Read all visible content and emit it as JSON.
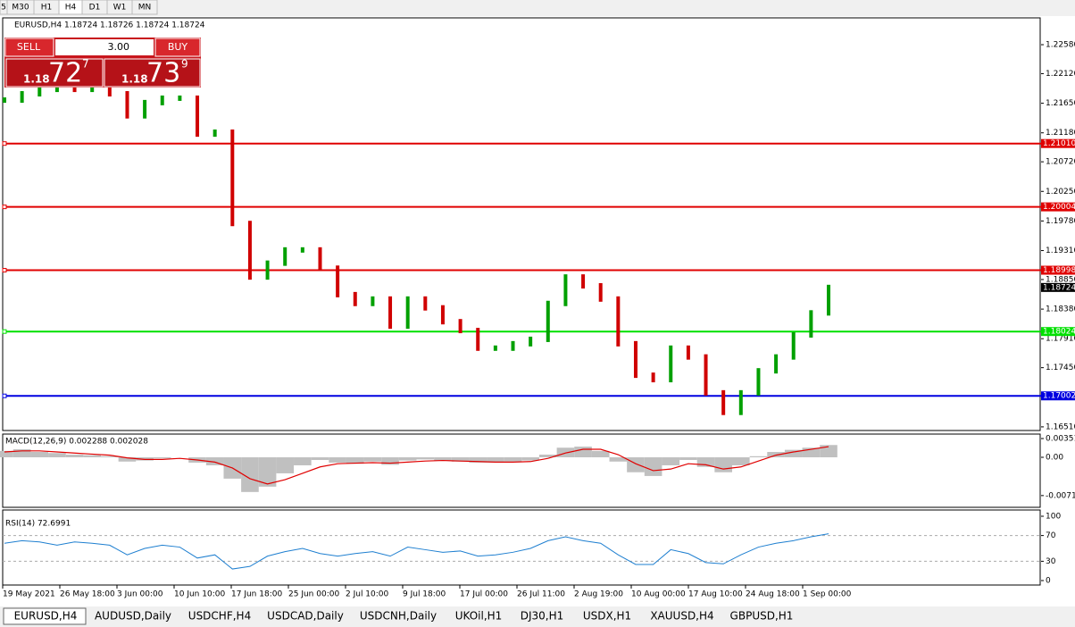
{
  "toolbar": {
    "timeframes": [
      "5",
      "M30",
      "H1",
      "H4",
      "D1",
      "W1",
      "MN"
    ]
  },
  "trade_panel": {
    "sell": "SELL",
    "lots": "3.00",
    "buy": "BUY",
    "bid_big": "1.18",
    "bid_main": "72",
    "bid_frac": "7",
    "ask_big": "1.18",
    "ask_main": "73",
    "ask_frac": "9"
  },
  "chart_data": [
    {
      "type": "candlestick",
      "title": "EURUSD,H4  1.18724 1.18726 1.18724 1.18724",
      "up_color": "#00a000",
      "down_color": "#d00000",
      "values": [
        1.217,
        1.218,
        1.2187,
        1.2194,
        1.2187,
        1.2187,
        1.218,
        1.2145,
        1.2166,
        1.2173,
        1.2173,
        1.2116,
        1.2119,
        1.1974,
        1.1889,
        1.1911,
        1.1932,
        1.1932,
        1.1903,
        1.1861,
        1.1847,
        1.1854,
        1.1811,
        1.1854,
        1.184,
        1.1818,
        1.1804,
        1.1776,
        1.1776,
        1.1783,
        1.179,
        1.1847,
        1.1889,
        1.1875,
        1.1854,
        1.1783,
        1.1733,
        1.1726,
        1.1776,
        1.1762,
        1.1705,
        1.1674,
        1.1705,
        1.174,
        1.1762,
        1.1797,
        1.1832,
        1.18724
      ],
      "xticks": [
        "19 May 2021",
        "26 May 18:00",
        "3 Jun 00:00",
        "10 Jun 10:00",
        "17 Jun 18:00",
        "25 Jun 00:00",
        "2 Jul 10:00",
        "9 Jul 18:00",
        "17 Jul 00:00",
        "26 Jul 11:00",
        "2 Aug 19:00",
        "10 Aug 00:00",
        "17 Aug 10:00",
        "24 Aug 18:00",
        "1 Sep 00:00"
      ],
      "ylim": [
        1.16452,
        1.23006
      ],
      "yticks": [
        {
          "value": 1.2258,
          "label": "1.22580"
        },
        {
          "value": 1.2212,
          "label": "1.22120"
        },
        {
          "value": 1.2165,
          "label": "1.21650"
        },
        {
          "value": 1.2118,
          "label": "1.21180"
        },
        {
          "value": 1.2072,
          "label": "1.20720"
        },
        {
          "value": 1.2025,
          "label": "1.20250"
        },
        {
          "value": 1.1978,
          "label": "1.19780"
        },
        {
          "value": 1.1931,
          "label": "1.19310"
        },
        {
          "value": 1.1885,
          "label": "1.18850"
        },
        {
          "value": 1.1838,
          "label": "1.18380"
        },
        {
          "value": 1.1791,
          "label": "1.17910"
        },
        {
          "value": 1.1745,
          "label": "1.17450"
        },
        {
          "value": 1.1651,
          "label": "1.16510"
        }
      ],
      "levels": [
        {
          "value": 1.2101,
          "label": "1.21010",
          "color": "#e00000"
        },
        {
          "value": 1.20004,
          "label": "1.20004",
          "color": "#e00000"
        },
        {
          "value": 1.18998,
          "label": "1.18998",
          "color": "#e00000"
        },
        {
          "value": 1.18024,
          "label": "1.18024",
          "color": "#00e000"
        },
        {
          "value": 1.17002,
          "label": "1.17002",
          "color": "#0000e0"
        }
      ],
      "last": {
        "value": 1.18724,
        "label": "1.18724"
      }
    },
    {
      "type": "macd",
      "title": "MACD(12,26,9) 0.002288 0.002028",
      "color": "#c0c0c0",
      "signal_color": "#e00000",
      "values": [
        0.0012,
        0.0015,
        0.001,
        0.0008,
        0.0005,
        0.0004,
        0.0002,
        -0.0008,
        -0.0006,
        -0.0002,
        0.0,
        -0.001,
        -0.0015,
        -0.004,
        -0.0065,
        -0.0055,
        -0.003,
        -0.0015,
        -0.0005,
        -0.001,
        -0.0012,
        -0.0008,
        -0.0014,
        -0.0006,
        -0.0004,
        -0.0006,
        -0.0008,
        -0.001,
        -0.001,
        -0.0008,
        -0.0006,
        0.0005,
        0.0018,
        0.002,
        0.0012,
        -0.0008,
        -0.0028,
        -0.0035,
        -0.0015,
        -0.0005,
        -0.0018,
        -0.0028,
        -0.0015,
        0.0002,
        0.001,
        0.0014,
        0.0018,
        0.0023
      ],
      "signal": [
        0.001,
        0.0012,
        0.0012,
        0.001,
        0.0008,
        0.0006,
        0.0004,
        -0.0001,
        -0.0004,
        -0.0004,
        -0.0002,
        -0.0005,
        -0.0009,
        -0.002,
        -0.004,
        -0.005,
        -0.0042,
        -0.003,
        -0.0018,
        -0.0012,
        -0.0011,
        -0.001,
        -0.0011,
        -0.0009,
        -0.0007,
        -0.0006,
        -0.0007,
        -0.0008,
        -0.0009,
        -0.0009,
        -0.0008,
        -0.0002,
        0.0008,
        0.0015,
        0.0015,
        0.0005,
        -0.0012,
        -0.0025,
        -0.0022,
        -0.0012,
        -0.0014,
        -0.0022,
        -0.0018,
        -0.0007,
        0.0004,
        0.001,
        0.0015,
        0.002
      ],
      "ylim": [
        -0.00937,
        0.00435
      ],
      "yticks": [
        0.003515,
        {
          "value": 0,
          "label": "0.00"
        },
        -0.00717
      ]
    },
    {
      "type": "line",
      "title": "RSI(14) 72.6991",
      "color": "#1e7fd0",
      "values": [
        58,
        62,
        60,
        55,
        60,
        58,
        55,
        40,
        50,
        55,
        52,
        35,
        40,
        18,
        22,
        38,
        45,
        50,
        42,
        38,
        42,
        45,
        38,
        52,
        48,
        44,
        46,
        38,
        40,
        44,
        50,
        62,
        68,
        62,
        58,
        40,
        25,
        25,
        48,
        42,
        28,
        26,
        40,
        52,
        58,
        62,
        68,
        72.6991
      ],
      "ylim": [
        0,
        100
      ],
      "yticks": [
        100,
        70,
        30,
        0
      ]
    }
  ],
  "tabs": [
    "EURUSD,H4",
    "AUDUSD,Daily",
    "USDCHF,H4",
    "USDCAD,Daily",
    "USDCNH,Daily",
    "UKOil,H1",
    "DJ30,H1",
    "USDX,H1",
    "XAUUSD,H4",
    "GBPUSD,H1"
  ]
}
